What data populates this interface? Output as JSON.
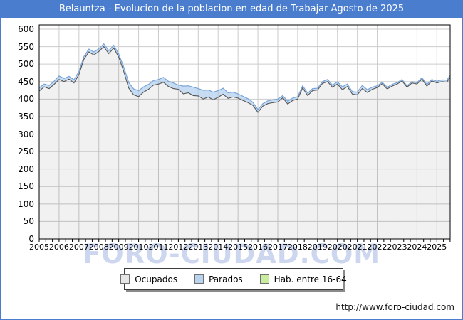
{
  "header": {
    "title": "Belauntza - Evolucion de la poblacion en edad de Trabajar Agosto de 2025"
  },
  "watermark": {
    "text": "FORO-CIUDAD.COM"
  },
  "footer": {
    "url": "http://www.foro-ciudad.com"
  },
  "colors": {
    "frame_border": "#4a7dce",
    "title_bar": "#4a7dce",
    "plot_border": "#000000",
    "gridline": "#cccccc",
    "ocupados_area": "rgba(0,0,0,0.055)",
    "ocupados_line": "#565656",
    "parados_band": "rgba(168,202,236,0.65)",
    "parados_line": "#7aa4d8",
    "watermark": "#ccd6ee"
  },
  "legend": {
    "items": [
      {
        "label": "Ocupados",
        "color": "#e6e6e6",
        "border": "#707070"
      },
      {
        "label": "Parados",
        "color": "#b9d3ee",
        "border": "#707070"
      },
      {
        "label": "Hab. entre 16-64",
        "color": "#c9ec9e",
        "border": "#707070"
      }
    ]
  },
  "chart_data": {
    "type": "area",
    "title": "Belauntza - Evolucion de la poblacion en edad de Trabajar Agosto de 2025",
    "xlabel": "",
    "ylabel": "",
    "ylim": [
      0,
      600
    ],
    "ytick_step": 50,
    "grid": true,
    "legend_position": "bottom",
    "x_start": 2005,
    "x_step": 0.25,
    "x_end": 2025.67,
    "x_tick_years": [
      2005,
      2006,
      2007,
      2008,
      2009,
      2010,
      2011,
      2012,
      2013,
      2014,
      2015,
      2016,
      2017,
      2018,
      2019,
      2020,
      2021,
      2022,
      2023,
      2024,
      2025
    ],
    "series": [
      {
        "name": "Ocupados",
        "values": [
          423,
          435,
          430,
          442,
          456,
          450,
          457,
          446,
          470,
          514,
          535,
          526,
          536,
          550,
          530,
          546,
          520,
          480,
          432,
          412,
          407,
          420,
          428,
          440,
          443,
          448,
          436,
          430,
          428,
          415,
          418,
          410,
          409,
          400,
          406,
          398,
          405,
          414,
          402,
          406,
          403,
          396,
          390,
          382,
          362,
          380,
          387,
          390,
          392,
          404,
          386,
          396,
          400,
          432,
          410,
          424,
          426,
          445,
          450,
          434,
          443,
          427,
          436,
          414,
          412,
          430,
          419,
          428,
          433,
          444,
          429,
          437,
          443,
          452,
          434,
          446,
          443,
          457,
          437,
          452,
          446,
          450,
          448,
          462
        ]
      },
      {
        "name": "Parados",
        "stacked_on": "Ocupados",
        "values": [
          9,
          8,
          9,
          9,
          10,
          9,
          8,
          9,
          9,
          8,
          8,
          9,
          8,
          8,
          9,
          8,
          9,
          12,
          16,
          17,
          17,
          15,
          14,
          13,
          13,
          14,
          15,
          16,
          12,
          22,
          20,
          24,
          21,
          25,
          20,
          22,
          19,
          17,
          16,
          14,
          12,
          12,
          11,
          9,
          8,
          7,
          8,
          8,
          8,
          6,
          8,
          7,
          7,
          6,
          7,
          6,
          5,
          5,
          6,
          6,
          6,
          8,
          7,
          7,
          8,
          9,
          8,
          6,
          5,
          4,
          5,
          5,
          4,
          4,
          4,
          4,
          4,
          4,
          5,
          4,
          5,
          5,
          6,
          6
        ]
      },
      {
        "name": "Hab. entre 16-64",
        "note": "legend entry visible; no separately distinguishable line in the plot",
        "values": []
      }
    ]
  }
}
